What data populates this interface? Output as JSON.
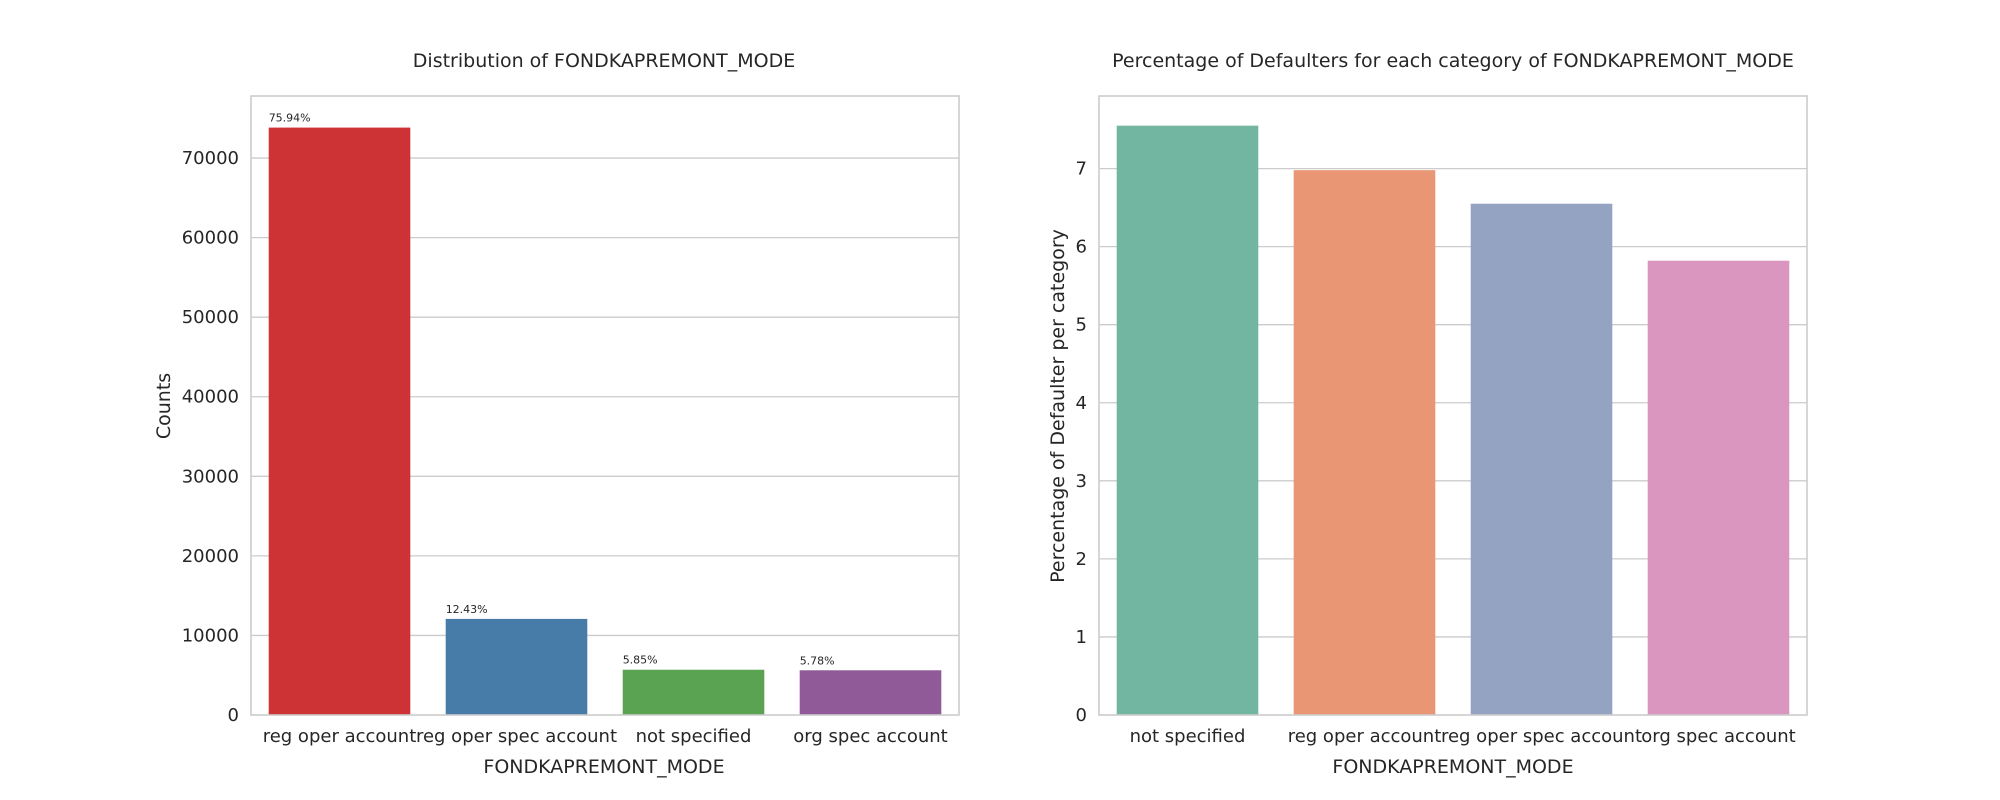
{
  "chart_data": [
    {
      "type": "bar",
      "title": "Distribution of FONDKAPREMONT_MODE",
      "xlabel": "FONDKAPREMONT_MODE",
      "ylabel": "Counts",
      "categories": [
        "reg oper account",
        "reg oper spec account",
        "not specified",
        "org spec account"
      ],
      "values": [
        73830,
        12080,
        5690,
        5620
      ],
      "data_labels": [
        "75.94%",
        "12.43%",
        "5.85%",
        "5.78%"
      ],
      "colors": [
        "#cd3335",
        "#477ca8",
        "#59a352",
        "#905998"
      ],
      "ylim": [
        0,
        77800
      ],
      "yticks": [
        0,
        10000,
        20000,
        30000,
        40000,
        50000,
        60000,
        70000
      ],
      "grid": true,
      "legend": "none"
    },
    {
      "type": "bar",
      "title": "Percentage of Defaulters for each category of FONDKAPREMONT_MODE",
      "xlabel": "FONDKAPREMONT_MODE",
      "ylabel": "Percentage of Defaulter per category",
      "categories": [
        "not specified",
        "reg oper account",
        "reg oper spec account",
        "org spec account"
      ],
      "values": [
        7.55,
        6.98,
        6.55,
        5.82
      ],
      "colors": [
        "#72b6a1",
        "#e99675",
        "#95a3c3",
        "#db96c0"
      ],
      "ylim": [
        0,
        7.93
      ],
      "yticks": [
        0,
        1,
        2,
        3,
        4,
        5,
        6,
        7
      ],
      "grid": true,
      "legend": "none"
    }
  ]
}
